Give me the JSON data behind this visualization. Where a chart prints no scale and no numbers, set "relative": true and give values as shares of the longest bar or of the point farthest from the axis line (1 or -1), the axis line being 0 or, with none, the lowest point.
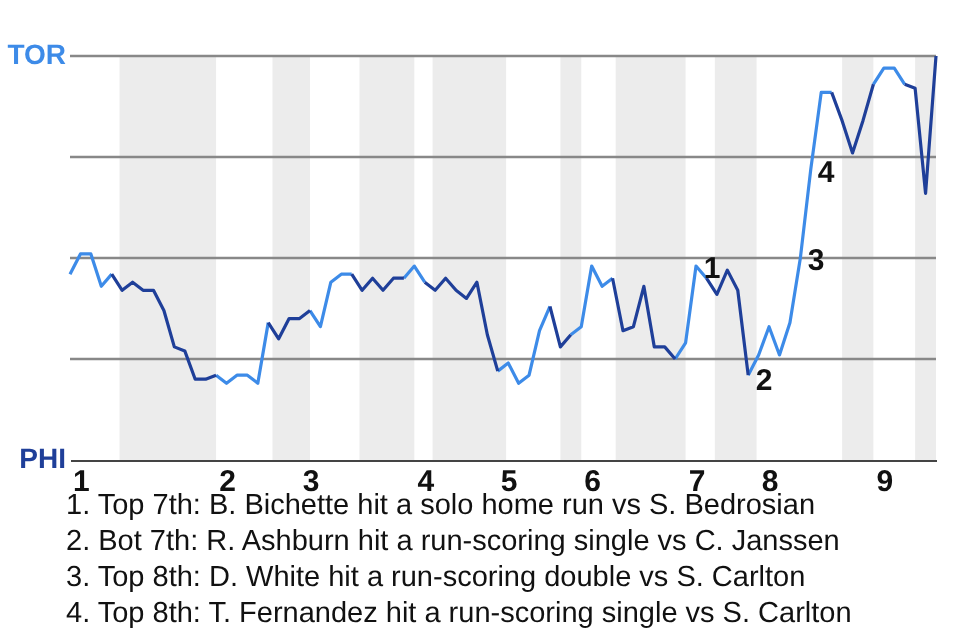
{
  "chart_data": {
    "type": "line",
    "relative": true,
    "categories": [
      null,
      "1",
      null,
      null,
      null,
      null,
      null,
      null,
      null,
      null,
      null,
      null,
      null,
      null,
      null,
      "2",
      null,
      null,
      null,
      null,
      null,
      null,
      null,
      "3",
      null,
      null,
      null,
      null,
      null,
      null,
      null,
      null,
      null,
      null,
      "4",
      null,
      null,
      null,
      null,
      null,
      null,
      null,
      "5",
      null,
      null,
      null,
      null,
      null,
      null,
      null,
      "6",
      null,
      null,
      null,
      null,
      null,
      null,
      null,
      null,
      null,
      "7",
      null,
      null,
      null,
      null,
      null,
      null,
      "8",
      null,
      null,
      null,
      null,
      null,
      null,
      null,
      null,
      null,
      null,
      "9",
      null,
      null,
      null,
      null,
      null
    ],
    "series": [
      {
        "color": "#3d8be8",
        "values": [
          0.46,
          0.51,
          0.51,
          0.43,
          0.46,
          null,
          null,
          null,
          null,
          null,
          null,
          null,
          null,
          null,
          0.21,
          0.19,
          0.21,
          0.21,
          0.19,
          0.34,
          null,
          null,
          null,
          0.37,
          0.33,
          0.44,
          0.46,
          0.46,
          null,
          null,
          null,
          null,
          0.45,
          0.48,
          0.44,
          null,
          null,
          null,
          null,
          null,
          null,
          0.22,
          0.24,
          0.19,
          0.21,
          0.32,
          0.38,
          null,
          0.31,
          0.33,
          0.48,
          0.43,
          0.45,
          null,
          null,
          null,
          null,
          null,
          0.25,
          0.29,
          0.48,
          0.45,
          null,
          null,
          null,
          0.21,
          0.26,
          0.33,
          0.26,
          0.34,
          0.5,
          0.72,
          0.91,
          0.91,
          null,
          null,
          null,
          0.93,
          0.97,
          0.97,
          0.93,
          null,
          null,
          null
        ]
      },
      {
        "color": "#1f3f99",
        "values": [
          null,
          null,
          null,
          null,
          0.46,
          0.42,
          0.44,
          0.42,
          0.42,
          0.37,
          0.28,
          0.27,
          0.2,
          0.2,
          0.21,
          null,
          null,
          null,
          null,
          0.34,
          0.3,
          0.35,
          0.35,
          0.37,
          null,
          null,
          null,
          0.46,
          0.42,
          0.45,
          0.42,
          0.45,
          0.45,
          null,
          0.44,
          0.42,
          0.45,
          0.42,
          0.4,
          0.44,
          0.31,
          0.22,
          null,
          null,
          null,
          null,
          0.38,
          0.28,
          0.31,
          null,
          null,
          null,
          0.45,
          0.32,
          0.33,
          0.43,
          0.28,
          0.28,
          0.25,
          null,
          null,
          0.45,
          0.41,
          0.47,
          0.42,
          0.21,
          null,
          null,
          null,
          null,
          null,
          null,
          null,
          0.91,
          0.84,
          0.76,
          0.84,
          0.93,
          null,
          null,
          0.93,
          0.92,
          0.66,
          1
        ]
      }
    ],
    "ref_lines": [
      {
        "axis": "y",
        "value": 0.25,
        "color": "#888888"
      },
      {
        "axis": "y",
        "value": 0.5,
        "color": "#888888"
      },
      {
        "axis": "y",
        "value": 0.75,
        "color": "#888888"
      },
      {
        "axis": "y",
        "value": 1,
        "color": "#888888"
      }
    ],
    "annotations": [
      "1",
      "2",
      "3",
      "4",
      "TOR",
      "PHI",
      "1. Top 7th: B. Bichette hit a solo home run vs S. Bedrosian",
      "2. Bot 7th: R. Ashburn hit a run-scoring single vs C. Janssen",
      "3. Top 8th: D. White hit a run-scoring double vs S. Carlton",
      "4. Top 8th: T. Fernandez hit a run-scoring single vs S. Carlton"
    ]
  }
}
